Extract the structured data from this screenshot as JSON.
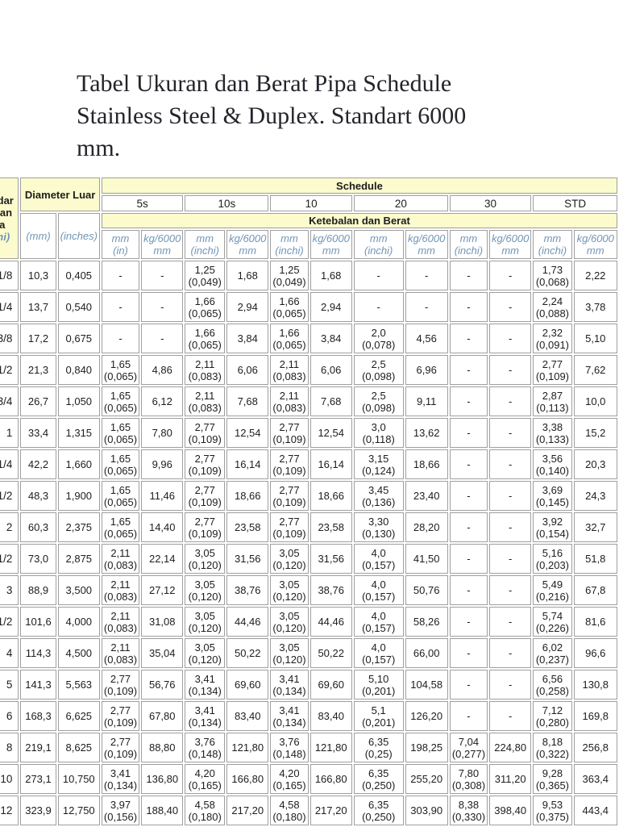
{
  "page": {
    "title": "Tabel Ukuran dan Berat Pipa Schedule\nStainless Steel & Duplex. Standart 6000\nmm."
  },
  "table": {
    "corner_header": {
      "title": "Standar\nUkuran\nPipa",
      "unit": "(inchi)"
    },
    "diameter_luar_label": "Diameter Luar",
    "schedule_label": "Schedule",
    "ketebalan_label": "Ketebalan dan Berat",
    "dia_units": [
      "(mm)",
      "(inches)"
    ],
    "schedule_columns": [
      "5s",
      "10s",
      "10",
      "20",
      "30",
      "STD"
    ],
    "sub_units": [
      "mm\n(in)",
      "kg/6000\nmm",
      "mm\n(inchi)",
      "kg/6000\nmm",
      "mm\n(inchi)",
      "kg/6000\nmm",
      "mm\n(inchi)",
      "kg/6000\nmm",
      "mm\n(inchi)",
      "kg/6000\nmm",
      "mm\n(inchi)",
      "kg/6000\nmm"
    ],
    "rows": [
      [
        "1/8",
        "10,3",
        "0,405",
        "-",
        "-",
        "1,25\n(0,049)",
        "1,68",
        "1,25\n(0,049)",
        "1,68",
        "-",
        "-",
        "-",
        "-",
        "1,73\n(0,068)",
        "2,22"
      ],
      [
        "1/4",
        "13,7",
        "0,540",
        "-",
        "-",
        "1,66\n(0,065)",
        "2,94",
        "1,66\n(0,065)",
        "2,94",
        "-",
        "-",
        "-",
        "-",
        "2,24\n(0,088)",
        "3,78"
      ],
      [
        "3/8",
        "17,2",
        "0,675",
        "-",
        "-",
        "1,66\n(0,065)",
        "3,84",
        "1,66\n(0,065)",
        "3,84",
        "2,0\n(0,078)",
        "4,56",
        "-",
        "-",
        "2,32\n(0,091)",
        "5,10"
      ],
      [
        "1/2",
        "21,3",
        "0,840",
        "1,65\n(0,065)",
        "4,86",
        "2,11\n(0,083)",
        "6,06",
        "2,11\n(0,083)",
        "6,06",
        "2,5 (0,098)",
        "6,96",
        "-",
        "-",
        "2,77\n(0,109)",
        "7,62"
      ],
      [
        "3/4",
        "26,7",
        "1,050",
        "1,65\n(0,065)",
        "6,12",
        "2,11\n(0,083)",
        "7,68",
        "2,11\n(0,083)",
        "7,68",
        "2,5 (0,098)",
        "9,11",
        "-",
        "-",
        "2,87\n(0,113)",
        "10,0"
      ],
      [
        "1",
        "33,4",
        "1,315",
        "1,65\n(0,065)",
        "7,80",
        "2,77\n(0,109)",
        "12,54",
        "2,77\n(0,109)",
        "12,54",
        "3,0 (0,118)",
        "13,62",
        "-",
        "-",
        "3,38\n(0,133)",
        "15,2"
      ],
      [
        "1/4",
        "42,2",
        "1,660",
        "1,65\n(0,065)",
        "9,96",
        "2,77\n(0,109)",
        "16,14",
        "2,77\n(0,109)",
        "16,14",
        "3,15 (0,124)",
        "18,66",
        "-",
        "-",
        "3,56\n(0,140)",
        "20,3"
      ],
      [
        "1/2",
        "48,3",
        "1,900",
        "1,65\n(0,065)",
        "11,46",
        "2,77\n(0,109)",
        "18,66",
        "2,77\n(0,109)",
        "18,66",
        "3,45 (0,136)",
        "23,40",
        "-",
        "-",
        "3,69\n(0,145)",
        "24,3"
      ],
      [
        "2",
        "60,3",
        "2,375",
        "1,65\n(0,065)",
        "14,40",
        "2,77\n(0,109)",
        "23,58",
        "2,77\n(0,109)",
        "23,58",
        "3,30 (0,130)",
        "28,20",
        "-",
        "-",
        "3,92\n(0,154)",
        "32,7"
      ],
      [
        "1/2",
        "73,0",
        "2,875",
        "2,11\n(0,083)",
        "22,14",
        "3,05\n(0,120)",
        "31,56",
        "3,05\n(0,120)",
        "31,56",
        "4,0 (0,157)",
        "41,50",
        "-",
        "-",
        "5,16\n(0,203)",
        "51,8"
      ],
      [
        "3",
        "88,9",
        "3,500",
        "2,11\n(0,083)",
        "27,12",
        "3,05\n(0,120)",
        "38,76",
        "3,05\n(0,120)",
        "38,76",
        "4,0  (0,157)",
        "50,76",
        "-",
        "-",
        "5,49\n(0,216)",
        "67,8"
      ],
      [
        "1/2",
        "101,6",
        "4,000",
        "2,11\n(0,083)",
        "31,08",
        "3,05\n(0,120)",
        "44,46",
        "3,05\n(0,120)",
        "44,46",
        "4,0 (0,157)",
        "58,26",
        "-",
        "-",
        "5,74\n(0,226)",
        "81,6"
      ],
      [
        "4",
        "114,3",
        "4,500",
        "2,11\n(0,083)",
        "35,04",
        "3,05\n(0,120)",
        "50,22",
        "3,05\n(0,120)",
        "50,22",
        "4,0 (0,157)",
        "66,00",
        "-",
        "-",
        "6,02\n(0,237)",
        "96,6"
      ],
      [
        "5",
        "141,3",
        "5,563",
        "2,77\n(0,109)",
        "56,76",
        "3,41\n(0,134)",
        "69,60",
        "3,41\n(0,134)",
        "69,60",
        "5,10 (0,201)",
        "104,58",
        "-",
        "-",
        "6,56\n(0,258)",
        "130,8"
      ],
      [
        "6",
        "168,3",
        "6,625",
        "2,77\n(0,109)",
        "67,80",
        "3,41\n(0,134)",
        "83,40",
        "3,41\n(0,134)",
        "83,40",
        "5,1 (0,201)",
        "126,20",
        "-",
        "-",
        "7,12\n(0,280)",
        "169,8"
      ],
      [
        "8",
        "219,1",
        "8,625",
        "2,77\n(0,109)",
        "88,80",
        "3,76\n(0,148)",
        "121,80",
        "3,76\n(0,148)",
        "121,80",
        "6,35 (0,25)",
        "198,25",
        "7,04\n(0,277)",
        "224,80",
        "8,18\n(0,322)",
        "256,8"
      ],
      [
        "10",
        "273,1",
        "10,750",
        "3,41\n(0,134)",
        "136,80",
        "4,20\n(0,165)",
        "166,80",
        "4,20\n(0,165)",
        "166,80",
        "6,35 (0,250)",
        "255,20",
        "7,80\n(0,308)",
        "311,20",
        "9,28\n(0,365)",
        "363,4"
      ],
      [
        "12",
        "323,9",
        "12,750",
        "3,97\n(0,156)",
        "188,40",
        "4,58\n(0,180)",
        "217,20",
        "4,58\n(0,180)",
        "217,20",
        "6,35 (0,250)",
        "303,90",
        "8,38\n(0,330)",
        "398,40",
        "9,53\n(0,375)",
        "443,4"
      ]
    ]
  }
}
